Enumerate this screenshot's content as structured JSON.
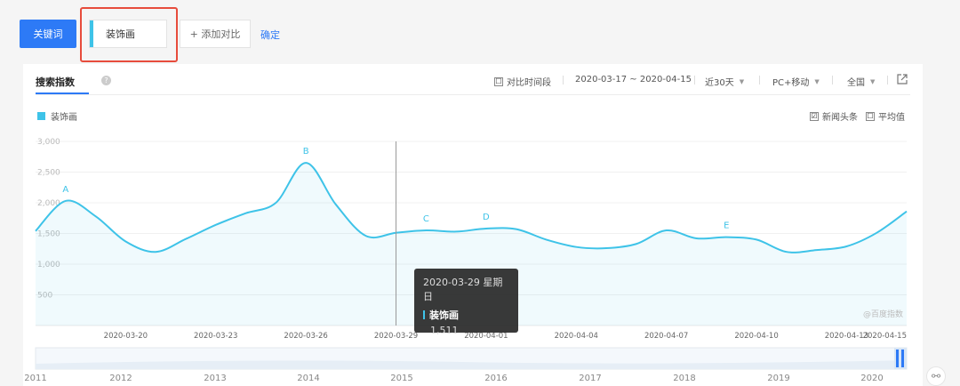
{
  "toolbar": {
    "keyword_button": "关键词",
    "keyword_value": "装饰画",
    "add_compare": "+ 添加对比",
    "confirm": "确定"
  },
  "panel": {
    "title": "搜索指数",
    "help_icon": "?",
    "compare_period": "对比时间段",
    "date_range": "2020-03-17 ~ 2020-04-15",
    "period": "近30天",
    "device": "PC+移动",
    "region": "全国",
    "legend_label": "装饰画",
    "news_label": "新闻头条",
    "avg_label": "平均值",
    "watermark": "@百度指数",
    "checkbox_checked": "☑",
    "checkbox_empty": "☐"
  },
  "tooltip": {
    "date": "2020-03-29 星期日",
    "series": "装饰画",
    "value": "1,511"
  },
  "colors": {
    "accent": "#2d7af6",
    "series": "#3ec3e8",
    "highlight": "#e74c3c"
  },
  "chart_data": {
    "type": "line",
    "yticks": [
      "3,000",
      "2,500",
      "2,000",
      "1,500",
      "1,000",
      "500"
    ],
    "ylim": [
      0,
      3000
    ],
    "xticks": [
      "2020-03-20",
      "2020-03-23",
      "2020-03-26",
      "2020-03-29",
      "2020-04-01",
      "2020-04-04",
      "2020-04-07",
      "2020-04-10",
      "2020-04-13",
      "2020-04-15"
    ],
    "dates": [
      "2020-03-17",
      "2020-03-18",
      "2020-03-19",
      "2020-03-20",
      "2020-03-21",
      "2020-03-22",
      "2020-03-23",
      "2020-03-24",
      "2020-03-25",
      "2020-03-26",
      "2020-03-27",
      "2020-03-28",
      "2020-03-29",
      "2020-03-30",
      "2020-03-31",
      "2020-04-01",
      "2020-04-02",
      "2020-04-03",
      "2020-04-04",
      "2020-04-05",
      "2020-04-06",
      "2020-04-07",
      "2020-04-08",
      "2020-04-09",
      "2020-04-10",
      "2020-04-11",
      "2020-04-12",
      "2020-04-13",
      "2020-04-14",
      "2020-04-15"
    ],
    "series": [
      {
        "name": "装饰画",
        "values": [
          1540,
          2030,
          1780,
          1370,
          1200,
          1410,
          1640,
          1830,
          2000,
          2650,
          1970,
          1460,
          1511,
          1550,
          1530,
          1580,
          1570,
          1400,
          1280,
          1260,
          1330,
          1550,
          1420,
          1440,
          1400,
          1200,
          1230,
          1290,
          1510,
          1860
        ]
      }
    ],
    "annotations": [
      {
        "label": "A",
        "date": "2020-03-18"
      },
      {
        "label": "B",
        "date": "2020-03-26"
      },
      {
        "label": "C",
        "date": "2020-03-30"
      },
      {
        "label": "D",
        "date": "2020-04-01"
      },
      {
        "label": "E",
        "date": "2020-04-09"
      }
    ],
    "crosshair_date": "2020-03-29",
    "navigator_labels": [
      "2011",
      "2012",
      "2013",
      "2014",
      "2015",
      "2016",
      "2017",
      "2018",
      "2019",
      "2020"
    ],
    "grid": true
  }
}
